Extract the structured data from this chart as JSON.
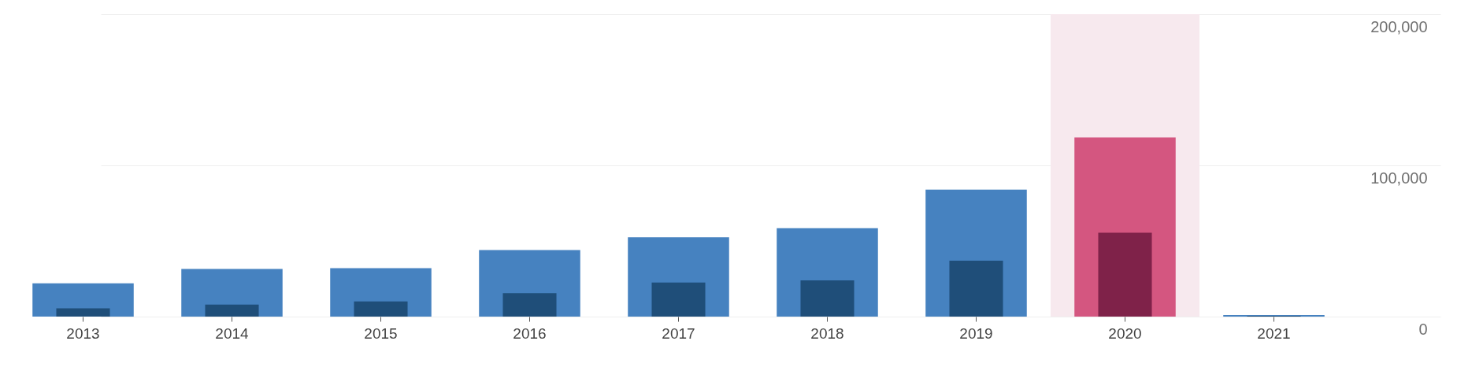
{
  "chart_data": {
    "type": "bar",
    "categories": [
      "2013",
      "2014",
      "2015",
      "2016",
      "2017",
      "2018",
      "2019",
      "2020",
      "2021"
    ],
    "series": [
      {
        "colors": [
          "#4682c0",
          "#4682c0",
          "#4682c0",
          "#4682c0",
          "#4682c0",
          "#4682c0",
          "#4682c0",
          "#d45680",
          "#4682c0"
        ],
        "values": [
          22000,
          31500,
          32000,
          44000,
          52500,
          58500,
          84000,
          118500,
          1000
        ]
      },
      {
        "colors": [
          "#1f4e79",
          "#1f4e79",
          "#1f4e79",
          "#1f4e79",
          "#1f4e79",
          "#1f4e79",
          "#1f4e79",
          "#7f2249",
          "#1f4e79"
        ],
        "values": [
          5500,
          8000,
          10000,
          15500,
          22500,
          24000,
          37000,
          55500,
          500
        ]
      }
    ],
    "ylim": [
      0,
      200000
    ],
    "yticks": [
      0,
      {
        "value": 100000,
        "label": "100,000"
      },
      {
        "value": 200000,
        "label": "200,000"
      }
    ],
    "grid": "y",
    "bands": [
      {
        "axis": "x",
        "from": "2020",
        "to": "2020",
        "color": "#f7e9ee"
      }
    ]
  }
}
